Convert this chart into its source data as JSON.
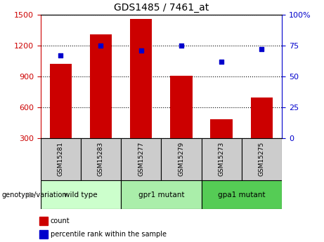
{
  "title": "GDS1485 / 7461_at",
  "samples": [
    "GSM15281",
    "GSM15283",
    "GSM15277",
    "GSM15279",
    "GSM15273",
    "GSM15275"
  ],
  "bar_heights": [
    1020,
    1310,
    1460,
    905,
    480,
    695
  ],
  "scatter_y": [
    67,
    75,
    71,
    75,
    62,
    72
  ],
  "ylim_left": [
    300,
    1500
  ],
  "ylim_right": [
    0,
    100
  ],
  "yticks_left": [
    300,
    600,
    900,
    1200,
    1500
  ],
  "yticks_right": [
    0,
    25,
    50,
    75,
    100
  ],
  "bar_color": "#cc0000",
  "scatter_color": "#0000cc",
  "bar_bottom": 300,
  "groups": [
    {
      "label": "wild type",
      "indices": [
        0,
        1
      ],
      "color": "#ccffcc"
    },
    {
      "label": "gpr1 mutant",
      "indices": [
        2,
        3
      ],
      "color": "#aaeeaa"
    },
    {
      "label": "gpa1 mutant",
      "indices": [
        4,
        5
      ],
      "color": "#55cc55"
    }
  ],
  "legend_items": [
    {
      "label": "count",
      "color": "#cc0000"
    },
    {
      "label": "percentile rank within the sample",
      "color": "#0000cc"
    }
  ],
  "xlabel_area_label": "genotype/variation",
  "tick_label_color_left": "#cc0000",
  "tick_label_color_right": "#0000cc",
  "sample_box_color": "#cccccc",
  "background_color": "#ffffff"
}
